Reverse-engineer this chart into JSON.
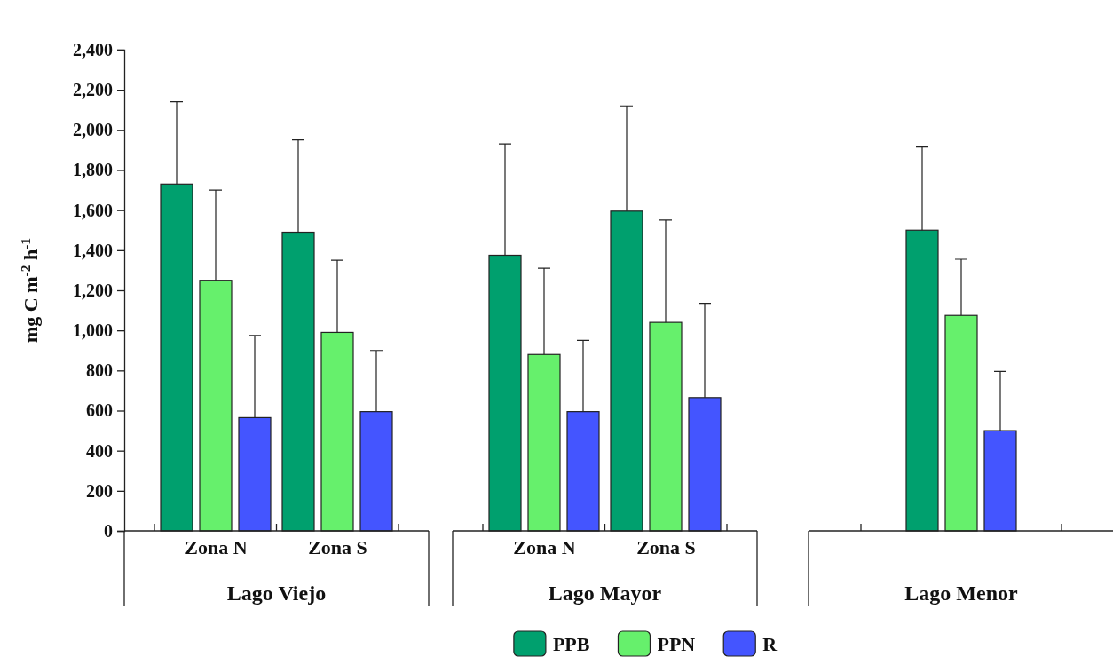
{
  "chart_data": [
    {
      "type": "bar",
      "ylabel": "mg C m$^{-2}$ h$^{-1}$",
      "xlabel": "Lago Viejo",
      "categories": [
        "Zona N",
        "Zona S"
      ],
      "series": [
        {
          "color": "#00a06e",
          "values": [
            1730,
            1490
          ],
          "errors": [
            [
              1730,
              2140
            ],
            [
              1490,
              1950
            ]
          ]
        },
        {
          "color": "#66f06c",
          "values": [
            1250,
            990
          ],
          "errors": [
            [
              1250,
              1700
            ],
            [
              990,
              1350
            ]
          ]
        },
        {
          "color": "#4455ff",
          "values": [
            565,
            595
          ],
          "errors": [
            [
              565,
              975
            ],
            [
              595,
              900
            ]
          ]
        }
      ],
      "ylim": [
        0,
        2400
      ],
      "yticks": [
        {
          "value": 0,
          "label": "0"
        },
        {
          "value": 200,
          "label": "200"
        },
        {
          "value": 400,
          "label": "400"
        },
        {
          "value": 600,
          "label": "600"
        },
        {
          "value": 800,
          "label": "800"
        },
        {
          "value": 1000,
          "label": "1,000"
        },
        {
          "value": 1200,
          "label": "1,200"
        },
        {
          "value": 1400,
          "label": "1,400"
        },
        {
          "value": 1600,
          "label": "1,600"
        },
        {
          "value": 1800,
          "label": "1,800"
        },
        {
          "value": 2000,
          "label": "2,000"
        },
        {
          "value": 2200,
          "label": "2,200"
        },
        {
          "value": 2400,
          "label": "2,400"
        }
      ]
    },
    {
      "type": "bar",
      "xlabel": "Lago Mayor",
      "categories": [
        "Zona N",
        "Zona S"
      ],
      "series": [
        {
          "name": "PPB",
          "color": "#00a06e",
          "values": [
            1375,
            1595
          ],
          "errors": [
            [
              1375,
              1930
            ],
            [
              1595,
              2120
            ]
          ]
        },
        {
          "name": "PPN",
          "color": "#66f06c",
          "values": [
            880,
            1040
          ],
          "errors": [
            [
              880,
              1310
            ],
            [
              1040,
              1550
            ]
          ]
        },
        {
          "name": "R",
          "color": "#4455ff",
          "values": [
            595,
            665
          ],
          "errors": [
            [
              595,
              950
            ],
            [
              665,
              1135
            ]
          ]
        }
      ],
      "ylim": [
        0,
        2400
      ],
      "tick_labels": "x",
      "legend": "bottom"
    },
    {
      "type": "bar",
      "xlabel": "Lago Menor",
      "categories": [
        null
      ],
      "series": [
        {
          "color": "#00a06e",
          "values": [
            1500
          ],
          "errors": [
            [
              1500,
              1915
            ]
          ]
        },
        {
          "color": "#66f06c",
          "values": [
            1075
          ],
          "errors": [
            [
              1075,
              1355
            ]
          ]
        },
        {
          "color": "#4455ff",
          "values": [
            500
          ],
          "errors": [
            [
              500,
              795
            ]
          ]
        }
      ],
      "ylim": [
        0,
        2400
      ],
      "tick_labels": false
    }
  ]
}
